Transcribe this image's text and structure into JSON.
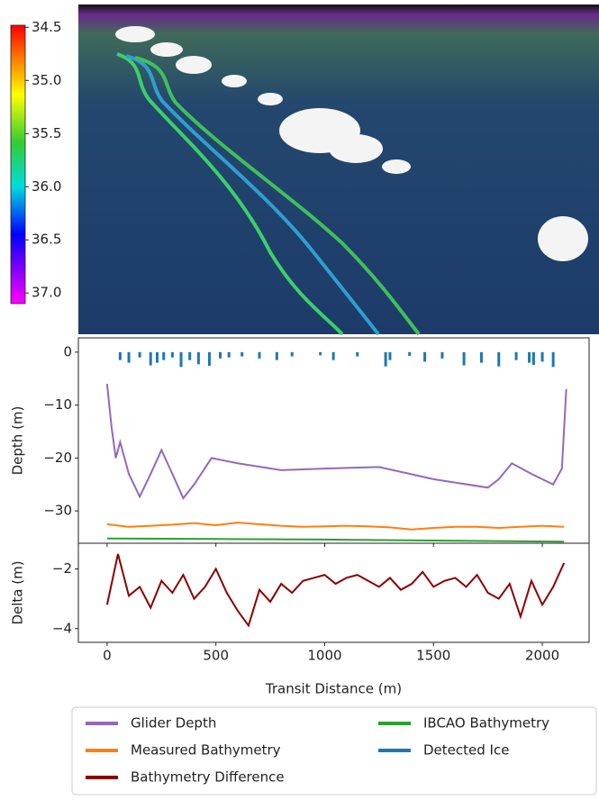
{
  "chart_data": [
    {
      "type": "colorbar",
      "ylim": [
        34.48,
        37.1
      ],
      "inverted": true,
      "yticks": [
        34.5,
        {
          "value": 35,
          "label": "35.0"
        },
        35.5,
        {
          "value": 36,
          "label": "36.0"
        },
        36.5,
        {
          "value": 37,
          "label": "37.0"
        }
      ]
    },
    {
      "type": "line",
      "ylabel": "Depth (m)",
      "xlim": [
        -132,
        2215
      ],
      "ylim": [
        -36.1,
        2.7
      ],
      "xticks": [
        0,
        500,
        1000,
        1500,
        2000
      ],
      "yticks": [
        0,
        {
          "value": -10,
          "label": "−10"
        },
        {
          "value": -20,
          "label": "−20"
        },
        {
          "value": -30,
          "label": "−30"
        }
      ],
      "series": [
        {
          "name": "Glider Depth",
          "color": "#9467bd",
          "x": [
            0,
            20,
            40,
            60,
            100,
            150,
            200,
            250,
            300,
            350,
            400,
            480,
            600,
            800,
            1000,
            1250,
            1500,
            1750,
            1800,
            1860,
            1950,
            2050,
            2090,
            2110
          ],
          "values": [
            -6,
            -14,
            -20,
            -17,
            -23,
            -27.3,
            -23,
            -18.5,
            -23,
            -27.6,
            -25,
            -20,
            -21,
            -22.3,
            -22,
            -21.7,
            -24,
            -25.6,
            -24,
            -21,
            -23,
            -25,
            -22,
            -7
          ]
        },
        {
          "name": "Measured Bathymetry",
          "color": "#ff7f0e",
          "x": [
            0,
            100,
            200,
            300,
            400,
            500,
            600,
            700,
            800,
            900,
            1000,
            1100,
            1200,
            1300,
            1400,
            1500,
            1600,
            1700,
            1800,
            1900,
            2000,
            2100
          ],
          "values": [
            -32.5,
            -33,
            -32.8,
            -32.6,
            -32.3,
            -32.7,
            -32.2,
            -32.5,
            -32.8,
            -33,
            -32.9,
            -32.8,
            -32.9,
            -33.1,
            -33.5,
            -33.2,
            -33,
            -33,
            -33.2,
            -33,
            -32.8,
            -33
          ]
        },
        {
          "name": "IBCAO Bathymetry",
          "color": "#2ca02c",
          "x": [
            0,
            500,
            1000,
            1500,
            2100
          ],
          "values": [
            -35.2,
            -35.3,
            -35.4,
            -35.6,
            -35.8
          ]
        },
        {
          "name": "Detected Ice",
          "color": "#1f77b4",
          "type": "bar",
          "x": [
            60,
            100,
            150,
            200,
            230,
            260,
            300,
            340,
            380,
            420,
            470,
            520,
            560,
            620,
            700,
            780,
            850,
            980,
            1040,
            1150,
            1280,
            1300,
            1390,
            1460,
            1540,
            1640,
            1720,
            1800,
            1880,
            1940,
            1960,
            2000,
            2050
          ],
          "values": [
            -1.5,
            -2,
            -1,
            -2.5,
            -2,
            -1.5,
            -1,
            -2.8,
            -1.5,
            -2.3,
            -2.6,
            -1.2,
            -1,
            -0.8,
            -1.2,
            -1.5,
            -0.8,
            -0.6,
            -1.5,
            -0.8,
            -2.7,
            -1.5,
            -0.7,
            -1.8,
            -1.2,
            -2.5,
            -2,
            -2.7,
            -1.5,
            -2,
            -2.4,
            -1.8,
            -2.8
          ]
        }
      ]
    },
    {
      "type": "line",
      "xlabel": "Transit Distance (m)",
      "ylabel": "Delta (m)",
      "xlim": [
        -132,
        2215
      ],
      "ylim": [
        -4.46,
        -1.14
      ],
      "xticks": [
        0,
        500,
        1000,
        1500,
        2000
      ],
      "yticks": [
        {
          "value": -2,
          "label": "−2"
        },
        {
          "value": -4,
          "label": "−4"
        }
      ],
      "series": [
        {
          "name": "Bathymetry Difference",
          "color": "#8b0000",
          "x": [
            0,
            50,
            100,
            150,
            200,
            250,
            300,
            350,
            400,
            450,
            500,
            550,
            600,
            650,
            700,
            750,
            800,
            850,
            900,
            950,
            1000,
            1050,
            1100,
            1150,
            1200,
            1250,
            1300,
            1350,
            1400,
            1450,
            1500,
            1550,
            1600,
            1650,
            1700,
            1750,
            1800,
            1850,
            1900,
            1950,
            2000,
            2050,
            2100
          ],
          "values": [
            -3.2,
            -1.5,
            -2.9,
            -2.6,
            -3.3,
            -2.4,
            -2.8,
            -2.2,
            -3.0,
            -2.6,
            -2.0,
            -2.8,
            -3.4,
            -3.9,
            -2.7,
            -3.1,
            -2.5,
            -2.8,
            -2.4,
            -2.3,
            -2.2,
            -2.5,
            -2.3,
            -2.2,
            -2.4,
            -2.6,
            -2.3,
            -2.7,
            -2.5,
            -2.1,
            -2.6,
            -2.4,
            -2.3,
            -2.6,
            -2.2,
            -2.8,
            -3.0,
            -2.5,
            -3.6,
            -2.4,
            -3.2,
            -2.6,
            -1.8
          ]
        }
      ]
    }
  ]
}
